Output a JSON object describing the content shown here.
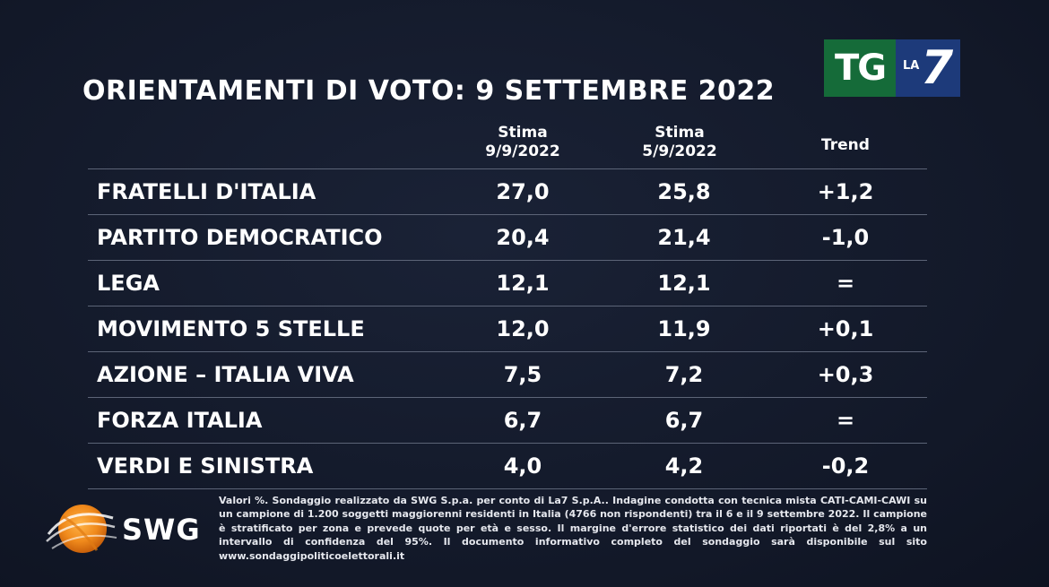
{
  "broadcaster": {
    "tg_label": "TG",
    "la_label": "LA",
    "seven_label": "7"
  },
  "title": "ORIENTAMENTI DI VOTO: 9 SETTEMBRE 2022",
  "columns": [
    {
      "line1": "Stima",
      "line2": "9/9/2022"
    },
    {
      "line1": "Stima",
      "line2": "5/9/2022"
    },
    {
      "line1": "Trend",
      "line2": ""
    }
  ],
  "rows": [
    {
      "party": "FRATELLI D'ITALIA",
      "stima_9_9": "27,0",
      "stima_5_9": "25,8",
      "trend": "+1,2"
    },
    {
      "party": "PARTITO DEMOCRATICO",
      "stima_9_9": "20,4",
      "stima_5_9": "21,4",
      "trend": "-1,0"
    },
    {
      "party": "LEGA",
      "stima_9_9": "12,1",
      "stima_5_9": "12,1",
      "trend": "="
    },
    {
      "party": "MOVIMENTO 5 STELLE",
      "stima_9_9": "12,0",
      "stima_5_9": "11,9",
      "trend": "+0,1"
    },
    {
      "party": "AZIONE – ITALIA VIVA",
      "stima_9_9": "7,5",
      "stima_5_9": "7,2",
      "trend": "+0,3"
    },
    {
      "party": "FORZA ITALIA",
      "stima_9_9": "6,7",
      "stima_5_9": "6,7",
      "trend": "="
    },
    {
      "party": "VERDI E SINISTRA",
      "stima_9_9": "4,0",
      "stima_5_9": "4,2",
      "trend": "-0,2"
    }
  ],
  "chart_data": {
    "type": "table",
    "title": "ORIENTAMENTI DI VOTO: 9 SETTEMBRE 2022",
    "columns": [
      "Stima 9/9/2022",
      "Stima 5/9/2022",
      "Trend"
    ],
    "categories": [
      "FRATELLI D'ITALIA",
      "PARTITO DEMOCRATICO",
      "LEGA",
      "MOVIMENTO 5 STELLE",
      "AZIONE – ITALIA VIVA",
      "FORZA ITALIA",
      "VERDI E SINISTRA"
    ],
    "series": [
      {
        "name": "Stima 9/9/2022",
        "values": [
          27.0,
          20.4,
          12.1,
          12.0,
          7.5,
          6.7,
          4.0
        ]
      },
      {
        "name": "Stima 5/9/2022",
        "values": [
          25.8,
          21.4,
          12.1,
          11.9,
          7.2,
          6.7,
          4.2
        ]
      },
      {
        "name": "Trend",
        "values": [
          1.2,
          -1.0,
          0,
          0.1,
          0.3,
          0,
          -0.2
        ]
      }
    ]
  },
  "source": {
    "logo_text": "SWG",
    "footnote": "Valori %. Sondaggio realizzato da SWG S.p.a. per conto di La7 S.p.A.. Indagine condotta con tecnica mista CATI-CAMI-CAWI su un campione di 1.200 soggetti maggiorenni residenti in Italia (4766 non rispondenti) tra il 6 e il 9 settembre 2022. Il campione è stratificato per zona e prevede quote per età e sesso. Il margine d'errore statistico dei dati riportati è del 2,8% a un intervallo di confidenza del 95%. Il documento informativo completo del sondaggio sarà disponibile sul sito www.sondaggipoliticoelettorali.it"
  },
  "colors": {
    "background": "#131a2c",
    "tg_green": "#156b39",
    "la7_blue": "#1d3a7a",
    "swg_orange": "#f08a1c",
    "divider": "#5c6477"
  }
}
